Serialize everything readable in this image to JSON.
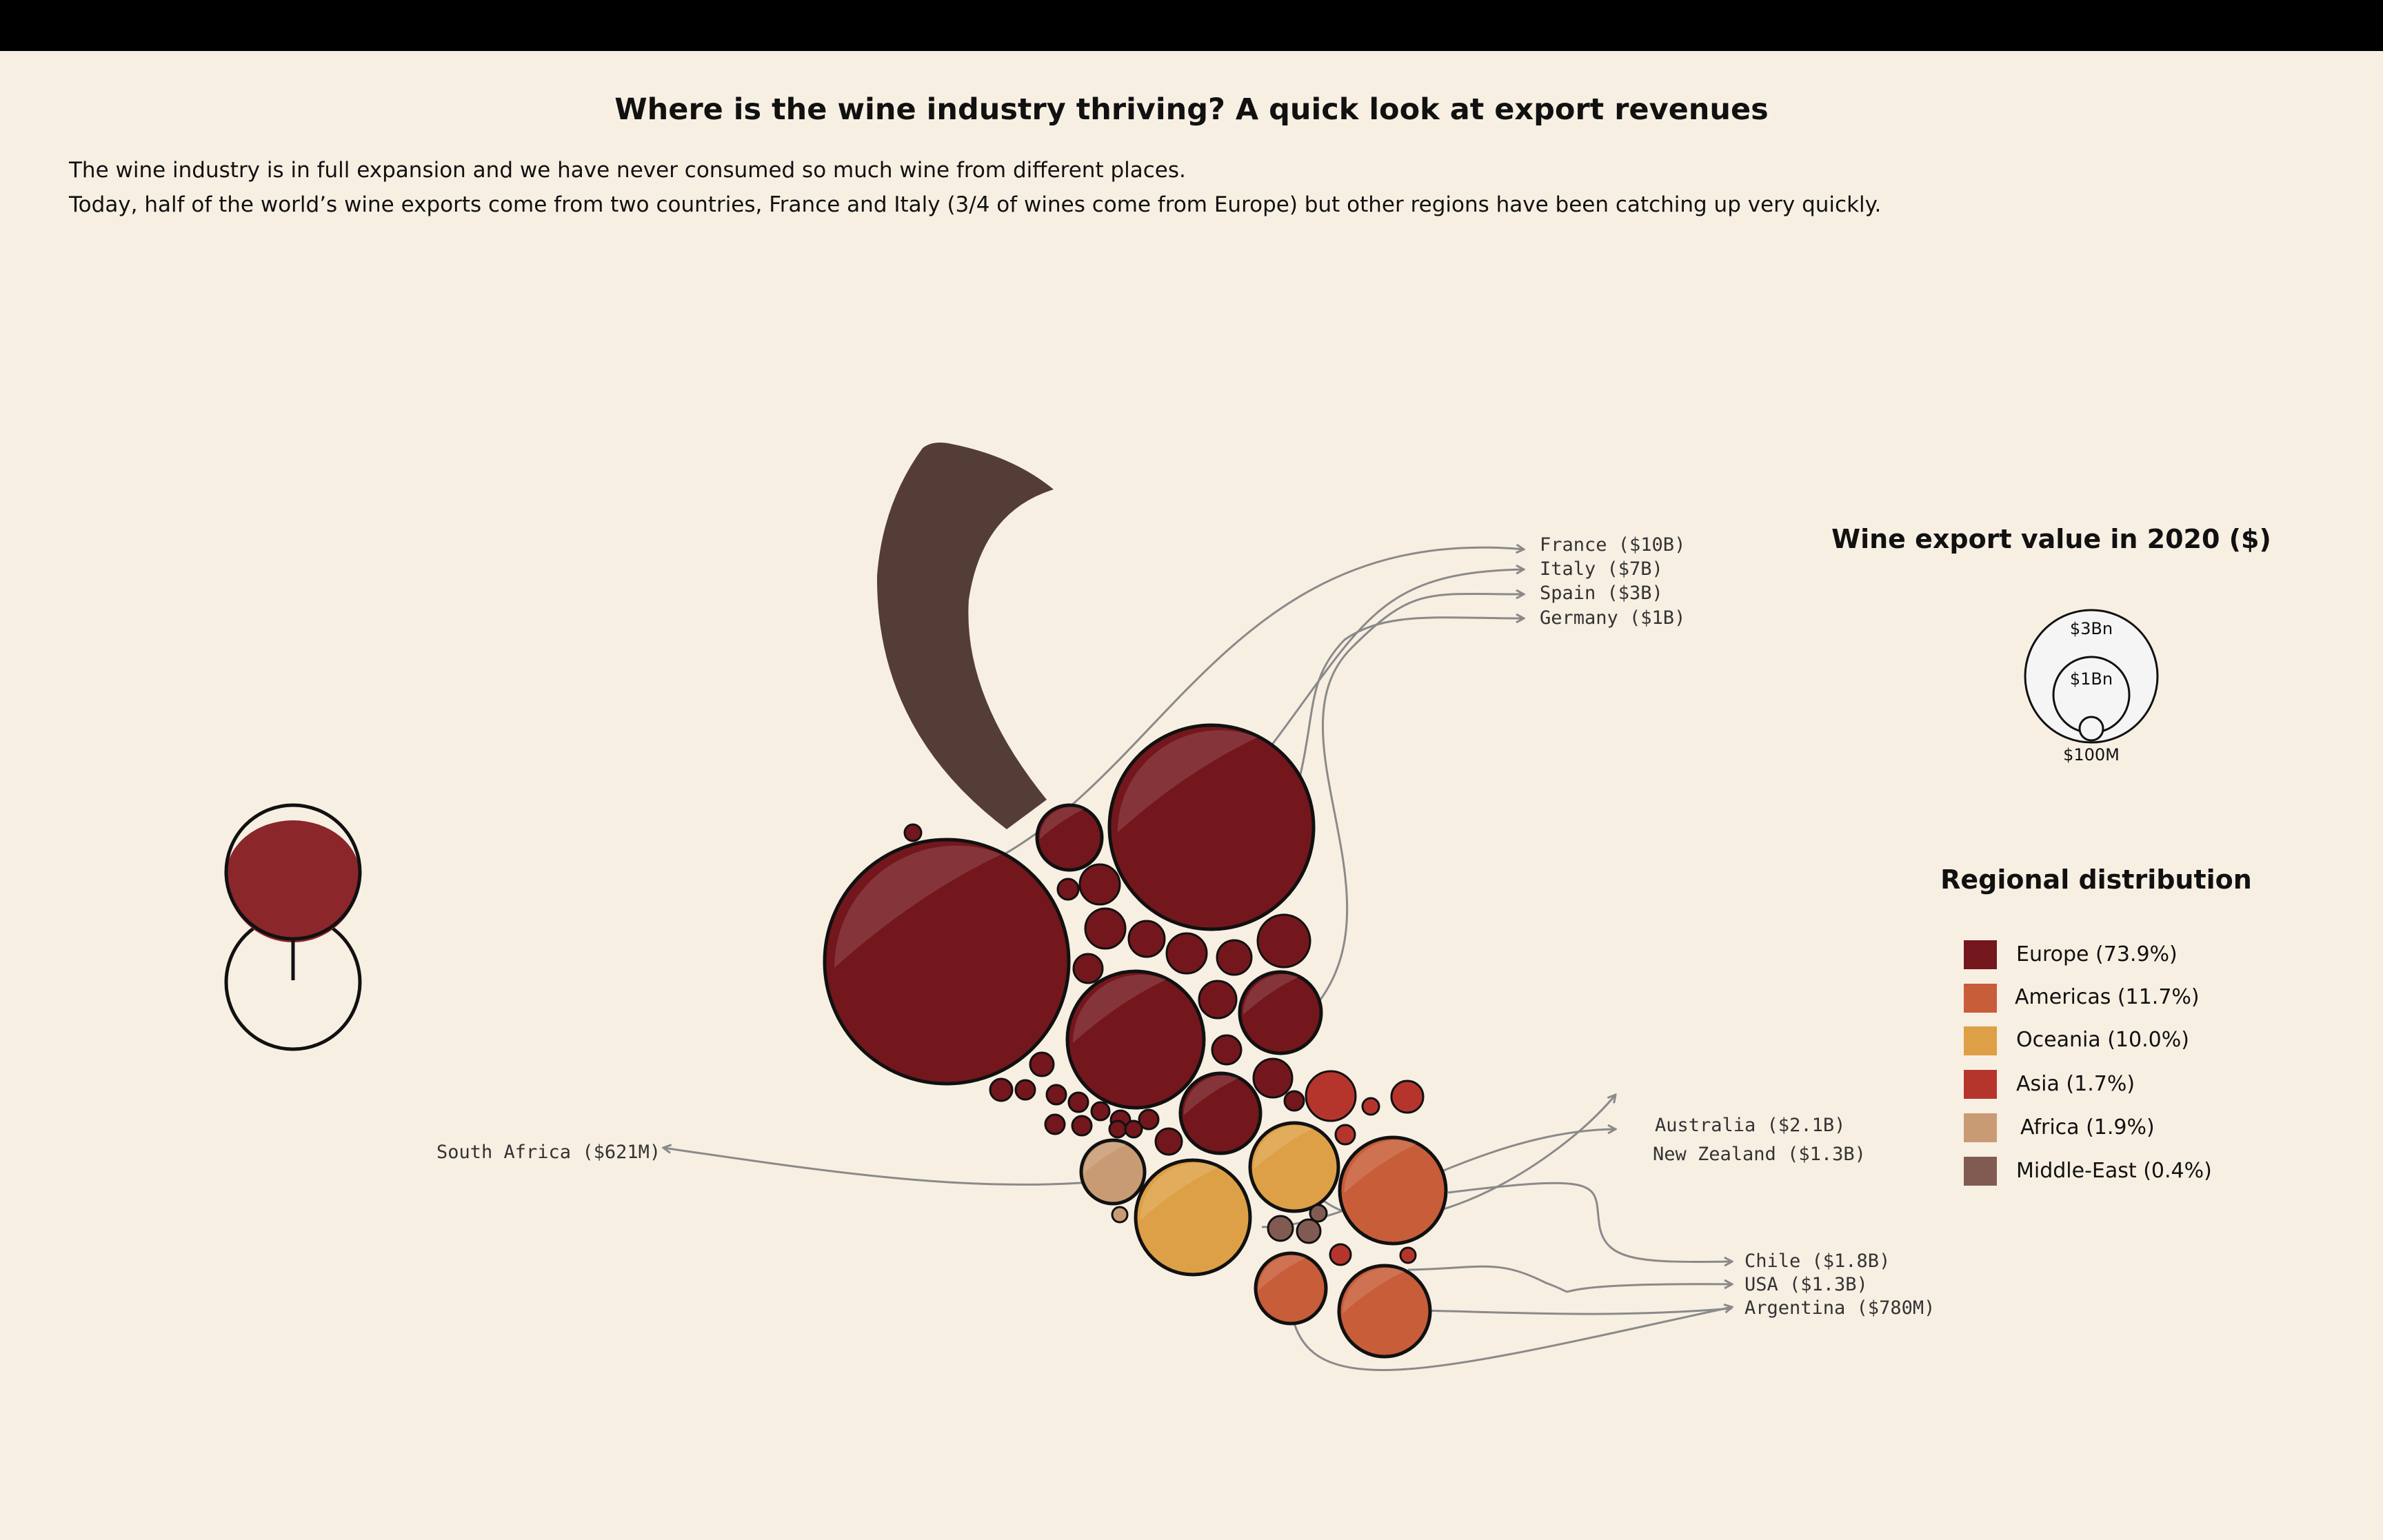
{
  "title": "Where is the wine industry thriving? A quick look at export revenues",
  "subtitle_line1": "The wine industry is in full expansion and we have never consumed so much wine from different places.",
  "subtitle_line2": "Today, half of the world’s wine exports come from two countries, France and Italy (3/4 of wines come from Europe) but other regions have been catching up very quickly.",
  "colors": {
    "background": "#f8efe3",
    "Europe": "#73171d",
    "Americas": "#c85d39",
    "Oceania": "#dea046",
    "Asia": "#b5352d",
    "Africa": "#c99b75",
    "Middle-East": "#815b51",
    "stem": "#543d36",
    "glass_wine": "#8b262b",
    "connector": "#8a8a8a"
  },
  "chart_data": {
    "type": "bubble",
    "size_legend": {
      "title": "Wine export value in 2020 ($)",
      "entries": [
        "$3Bn",
        "$1Bn",
        "$100M"
      ]
    },
    "region_legend": {
      "title": "Regional distribution",
      "entries": [
        {
          "region": "Europe",
          "label": "Europe (73.9%)",
          "share": 73.9
        },
        {
          "region": "Americas",
          "label": "Americas (11.7%)",
          "share": 11.7
        },
        {
          "region": "Oceania",
          "label": "Oceania (10.0%)",
          "share": 10.0
        },
        {
          "region": "Asia",
          "label": "Asia (1.7%)",
          "share": 1.7
        },
        {
          "region": "Africa",
          "label": "Africa (1.9%)",
          "share": 1.9
        },
        {
          "region": "Middle-East",
          "label": "Middle-East (0.4%)",
          "share": 0.4
        }
      ]
    },
    "labeled_countries": [
      {
        "label": "France ($10B)",
        "region": "Europe",
        "value_usd": 10000000000
      },
      {
        "label": "Italy ($7B)",
        "region": "Europe",
        "value_usd": 7000000000
      },
      {
        "label": "Spain ($3B)",
        "region": "Europe",
        "value_usd": 3000000000
      },
      {
        "label": "Germany ($1B)",
        "region": "Europe",
        "value_usd": 1000000000
      },
      {
        "label": "Australia ($2.1B)",
        "region": "Oceania",
        "value_usd": 2100000000
      },
      {
        "label": "New Zealand ($1.3B)",
        "region": "Oceania",
        "value_usd": 1300000000
      },
      {
        "label": "Chile ($1.8B)",
        "region": "Americas",
        "value_usd": 1800000000
      },
      {
        "label": "USA ($1.3B)",
        "region": "Americas",
        "value_usd": 1300000000
      },
      {
        "label": "Argentina ($780M)",
        "region": "Americas",
        "value_usd": 780000000
      },
      {
        "label": "South Africa ($621M)",
        "region": "Africa",
        "value_usd": 621000000
      }
    ]
  }
}
